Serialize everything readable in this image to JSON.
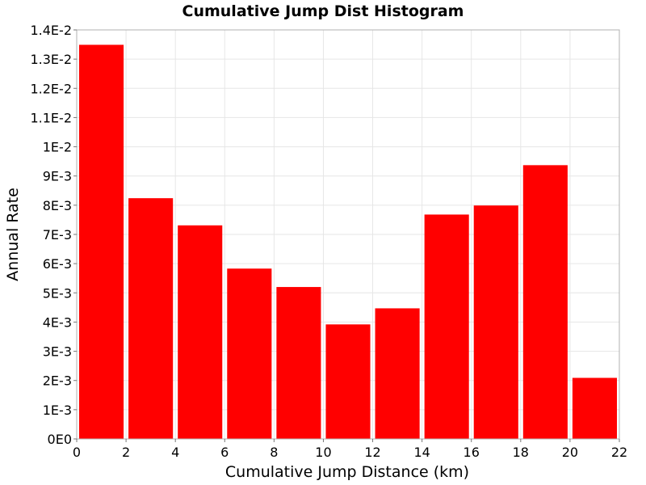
{
  "chart_data": {
    "type": "bar",
    "title": "Cumulative Jump Dist Histogram",
    "xlabel": "Cumulative Jump Distance (km)",
    "ylabel": "Annual Rate",
    "bar_color": "#ff0000",
    "grid": true,
    "xlim": [
      0,
      22
    ],
    "ylim": [
      0,
      0.014
    ],
    "x_ticks": [
      0,
      2,
      4,
      6,
      8,
      10,
      12,
      14,
      16,
      18,
      20,
      22
    ],
    "x_tick_labels": [
      "0",
      "2",
      "4",
      "6",
      "8",
      "10",
      "12",
      "14",
      "16",
      "18",
      "20",
      "22"
    ],
    "y_ticks": [
      0,
      0.001,
      0.002,
      0.003,
      0.004,
      0.005,
      0.006,
      0.007,
      0.008,
      0.009,
      0.01,
      0.011,
      0.012,
      0.013,
      0.014
    ],
    "y_tick_labels": [
      "0E0",
      "1E-3",
      "2E-3",
      "3E-3",
      "4E-3",
      "5E-3",
      "6E-3",
      "7E-3",
      "8E-3",
      "9E-3",
      "1E-2",
      "1.1E-2",
      "1.2E-2",
      "1.3E-2",
      "1.4E-2"
    ],
    "bins": [
      {
        "x0": 0,
        "x1": 2,
        "value": 0.01349
      },
      {
        "x0": 2,
        "x1": 4,
        "value": 0.00824
      },
      {
        "x0": 4,
        "x1": 6,
        "value": 0.00731
      },
      {
        "x0": 6,
        "x1": 8,
        "value": 0.00583
      },
      {
        "x0": 8,
        "x1": 10,
        "value": 0.0052
      },
      {
        "x0": 10,
        "x1": 12,
        "value": 0.00392
      },
      {
        "x0": 12,
        "x1": 14,
        "value": 0.00447
      },
      {
        "x0": 14,
        "x1": 16,
        "value": 0.00768
      },
      {
        "x0": 16,
        "x1": 18,
        "value": 0.00799
      },
      {
        "x0": 18,
        "x1": 20,
        "value": 0.00937
      },
      {
        "x0": 20,
        "x1": 22,
        "value": 0.00209
      }
    ]
  }
}
